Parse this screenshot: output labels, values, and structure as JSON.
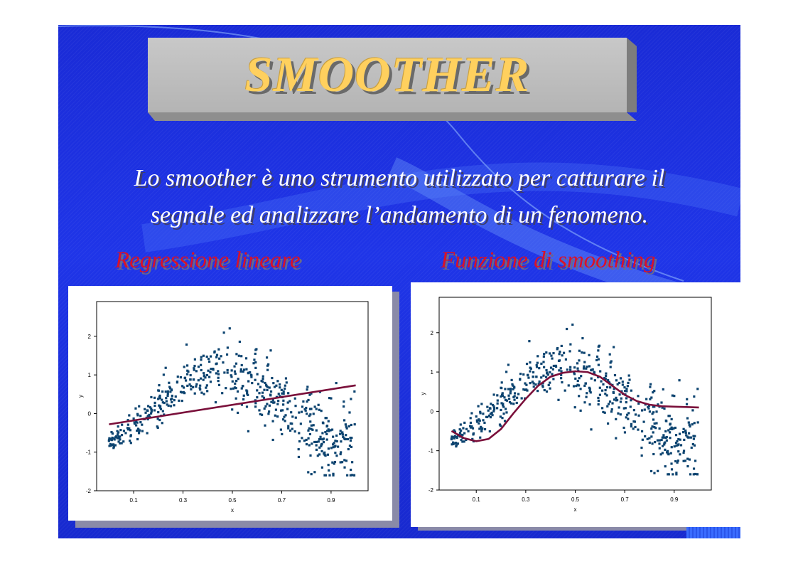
{
  "slide": {
    "title": "SMOOTHER",
    "intro_line1": "Lo smoother è uno strumento utilizzato per catturare il",
    "intro_line2": "segnale ed analizzare l’andamento di un fenomeno.",
    "left_heading": "Regressione lineare",
    "right_heading": "Funzione di smoothing",
    "colors": {
      "background": "#1f35e8",
      "title_text": "#ffd05e",
      "heading_text": "#d8122a",
      "points": "#0d4470",
      "fit_line": "#7a0f3a"
    }
  },
  "chart_data": [
    {
      "type": "scatter",
      "title": "",
      "xlabel": "x",
      "ylabel": "y",
      "xlim": [
        -0.05,
        1.05
      ],
      "ylim": [
        -2,
        2.9
      ],
      "xticks": [
        "0.1",
        "0.3",
        "0.5",
        "0.7",
        "0.9"
      ],
      "yticks": [
        "2",
        "1",
        "0",
        "-1",
        "-2"
      ],
      "points": "scatter of ~600 observations of y = sin(2πx)-like signal plus noise, x in [0,1]",
      "fit": {
        "kind": "linear regression",
        "x": [
          0.0,
          1.0
        ],
        "y": [
          -0.28,
          0.73
        ]
      }
    },
    {
      "type": "scatter",
      "title": "",
      "xlabel": "x",
      "ylabel": "y",
      "xlim": [
        -0.05,
        1.05
      ],
      "ylim": [
        -2,
        2.9
      ],
      "xticks": [
        "0.1",
        "0.3",
        "0.5",
        "0.7",
        "0.9"
      ],
      "yticks": [
        "2",
        "1",
        "0",
        "-1",
        "-2"
      ],
      "fit": {
        "kind": "smoothing function",
        "x": [
          0.0,
          0.05,
          0.1,
          0.15,
          0.2,
          0.25,
          0.3,
          0.35,
          0.4,
          0.45,
          0.5,
          0.55,
          0.6,
          0.65,
          0.7,
          0.75,
          0.8,
          0.85,
          0.9,
          0.95,
          1.0
        ],
        "y": [
          -0.5,
          -0.68,
          -0.76,
          -0.7,
          -0.45,
          -0.05,
          0.32,
          0.65,
          0.88,
          0.98,
          1.02,
          1.0,
          0.88,
          0.65,
          0.42,
          0.26,
          0.17,
          0.13,
          0.12,
          0.11,
          0.1
        ]
      }
    }
  ]
}
